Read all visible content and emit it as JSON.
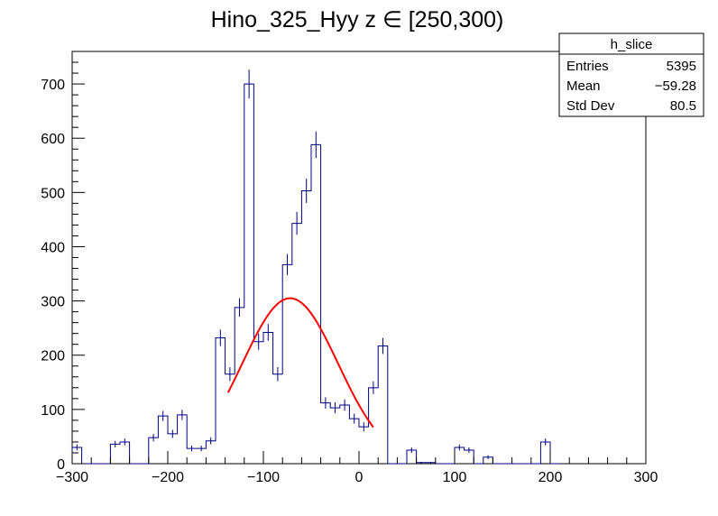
{
  "chart_data": {
    "type": "histogram",
    "title": "Hino_325_Hyy z  ∈ [250,300)",
    "xlim": [
      -300,
      300
    ],
    "ylim": [
      0,
      760
    ],
    "x_ticks": [
      -300,
      -200,
      -100,
      0,
      100,
      200,
      300
    ],
    "y_ticks": [
      0,
      100,
      200,
      300,
      400,
      500,
      600,
      700
    ],
    "bin_width": 10,
    "bins": [
      {
        "x0": -300,
        "y": 30
      },
      {
        "x0": -290,
        "y": 0
      },
      {
        "x0": -280,
        "y": 0
      },
      {
        "x0": -270,
        "y": 0
      },
      {
        "x0": -260,
        "y": 36
      },
      {
        "x0": -250,
        "y": 40
      },
      {
        "x0": -240,
        "y": 0
      },
      {
        "x0": -230,
        "y": 0
      },
      {
        "x0": -220,
        "y": 48
      },
      {
        "x0": -210,
        "y": 88
      },
      {
        "x0": -200,
        "y": 55
      },
      {
        "x0": -190,
        "y": 90
      },
      {
        "x0": -180,
        "y": 28
      },
      {
        "x0": -170,
        "y": 28
      },
      {
        "x0": -160,
        "y": 42
      },
      {
        "x0": -150,
        "y": 232
      },
      {
        "x0": -140,
        "y": 165
      },
      {
        "x0": -130,
        "y": 288
      },
      {
        "x0": -120,
        "y": 700
      },
      {
        "x0": -110,
        "y": 225
      },
      {
        "x0": -100,
        "y": 242
      },
      {
        "x0": -90,
        "y": 165
      },
      {
        "x0": -80,
        "y": 367
      },
      {
        "x0": -70,
        "y": 443
      },
      {
        "x0": -60,
        "y": 503
      },
      {
        "x0": -50,
        "y": 588
      },
      {
        "x0": -40,
        "y": 112
      },
      {
        "x0": -30,
        "y": 103
      },
      {
        "x0": -20,
        "y": 108
      },
      {
        "x0": -10,
        "y": 83
      },
      {
        "x0": 0,
        "y": 68
      },
      {
        "x0": 10,
        "y": 140
      },
      {
        "x0": 20,
        "y": 217
      },
      {
        "x0": 30,
        "y": 0
      },
      {
        "x0": 40,
        "y": 0
      },
      {
        "x0": 50,
        "y": 25
      },
      {
        "x0": 60,
        "y": 2
      },
      {
        "x0": 70,
        "y": 2
      },
      {
        "x0": 80,
        "y": 0
      },
      {
        "x0": 90,
        "y": 0
      },
      {
        "x0": 100,
        "y": 30
      },
      {
        "x0": 110,
        "y": 25
      },
      {
        "x0": 120,
        "y": 0
      },
      {
        "x0": 130,
        "y": 12
      },
      {
        "x0": 140,
        "y": 0
      },
      {
        "x0": 150,
        "y": 0
      },
      {
        "x0": 160,
        "y": 0
      },
      {
        "x0": 170,
        "y": 0
      },
      {
        "x0": 180,
        "y": 0
      },
      {
        "x0": 190,
        "y": 40
      },
      {
        "x0": 200,
        "y": 0
      }
    ],
    "fit": {
      "type": "gaussian",
      "amplitude": 305,
      "mean": -72,
      "sigma": 50,
      "x_range": [
        -137,
        15
      ]
    },
    "stats_box": {
      "name": "h_slice",
      "rows": [
        {
          "label": "Entries",
          "value": "5395"
        },
        {
          "label": "Mean",
          "value": "−59.28"
        },
        {
          "label": "Std Dev",
          "value": "80.5"
        }
      ]
    },
    "colors": {
      "histogram": "#000080",
      "fit": "#ff0000",
      "axis": "#000000"
    }
  }
}
